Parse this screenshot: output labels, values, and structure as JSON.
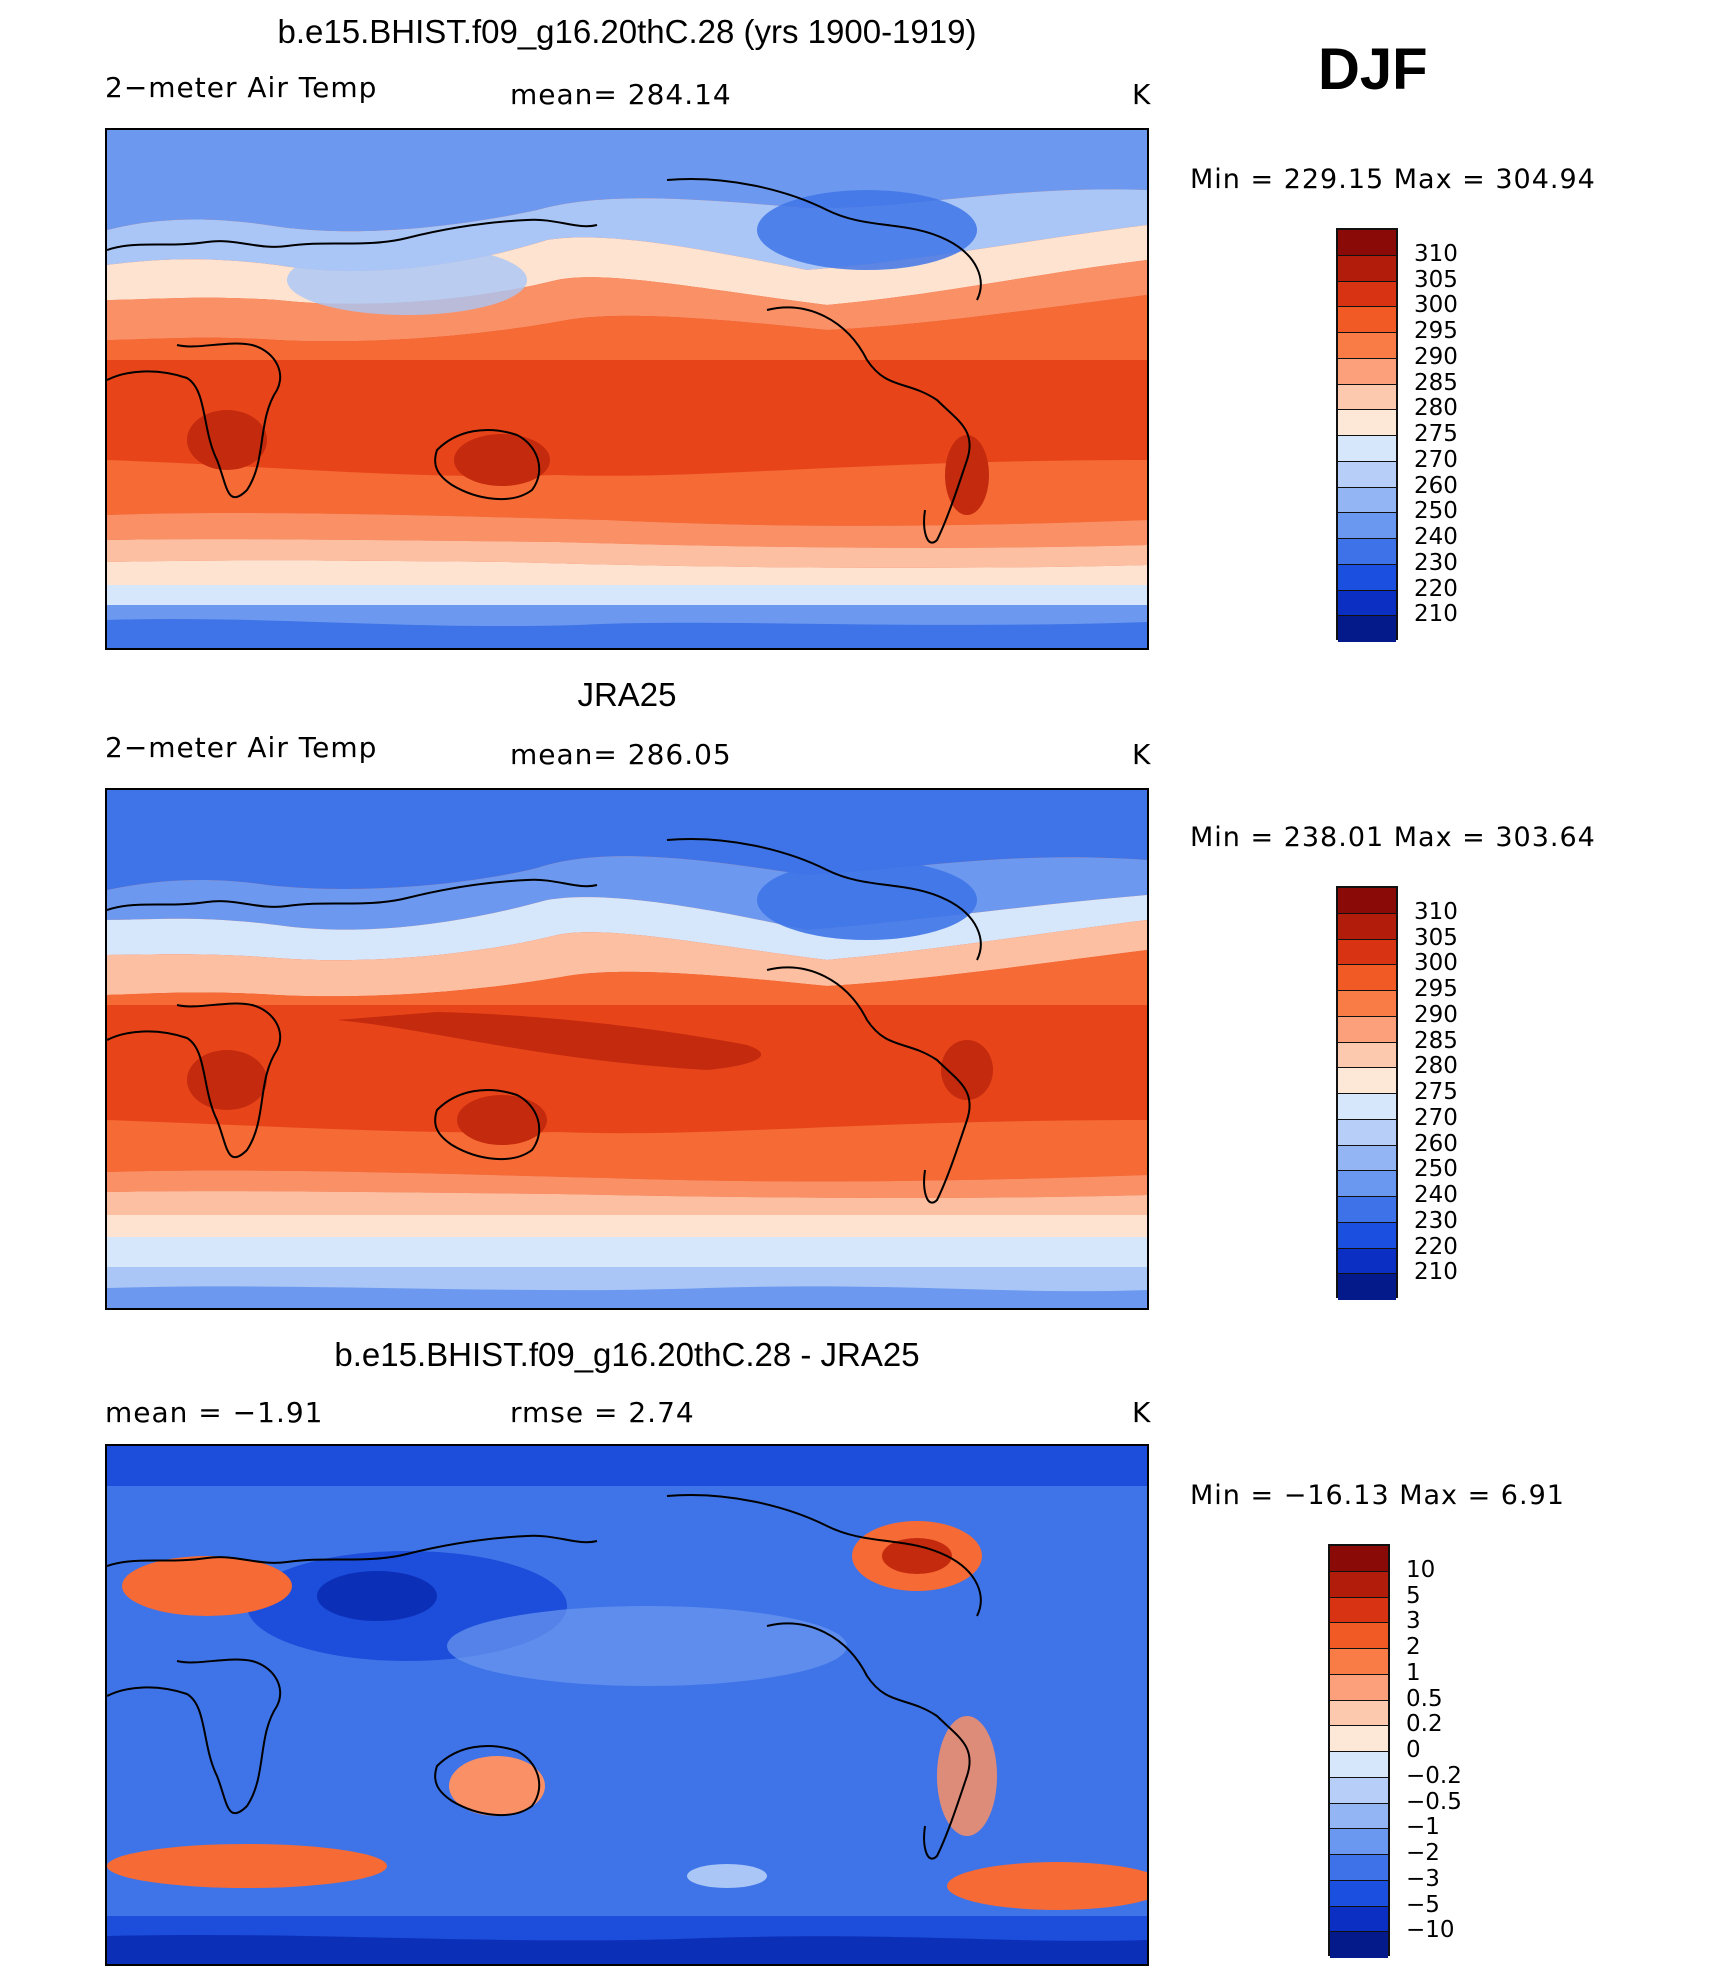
{
  "season": "DJF",
  "panels": [
    {
      "id": "model",
      "title": "b.e15.BHIST.f09_g16.20thC.28 (yrs 1900-1919)",
      "variable": "2−meter Air Temp",
      "stat1": "mean= 284.14",
      "stat2": "",
      "units": "K",
      "minmax": "Min  =  229.15  Max  =  304.94",
      "colorbar": {
        "labels": [
          "310",
          "305",
          "300",
          "295",
          "290",
          "285",
          "280",
          "275",
          "270",
          "260",
          "250",
          "240",
          "230",
          "220",
          "210"
        ],
        "colors": [
          "#8a0a07",
          "#b21d0b",
          "#d83312",
          "#f15a24",
          "#f97c47",
          "#fca07c",
          "#fcc9ae",
          "#fde7d6",
          "#d6e6fb",
          "#b7cff8",
          "#94b5f4",
          "#6a97ef",
          "#3e72e8",
          "#1a4fe0",
          "#0a2fc2",
          "#041a8a"
        ]
      }
    },
    {
      "id": "obs",
      "title": "JRA25",
      "variable": "2−meter Air Temp",
      "stat1": "mean= 286.05",
      "stat2": "",
      "units": "K",
      "minmax": "Min  =  238.01  Max  =  303.64",
      "colorbar": {
        "labels": [
          "310",
          "305",
          "300",
          "295",
          "290",
          "285",
          "280",
          "275",
          "270",
          "260",
          "250",
          "240",
          "230",
          "220",
          "210"
        ],
        "colors": [
          "#8a0a07",
          "#b21d0b",
          "#d83312",
          "#f15a24",
          "#f97c47",
          "#fca07c",
          "#fcc9ae",
          "#fde7d6",
          "#d6e6fb",
          "#b7cff8",
          "#94b5f4",
          "#6a97ef",
          "#3e72e8",
          "#1a4fe0",
          "#0a2fc2",
          "#041a8a"
        ]
      }
    },
    {
      "id": "diff",
      "title": "b.e15.BHIST.f09_g16.20thC.28 - JRA25",
      "variable": "mean =   −1.91",
      "stat1": "rmse =    2.74",
      "stat2": "",
      "units": "K",
      "minmax": "Min  =  −16.13  Max  =      6.91",
      "colorbar": {
        "labels": [
          "10",
          "5",
          "3",
          "2",
          "1",
          "0.5",
          "0.2",
          "0",
          "−0.2",
          "−0.5",
          "−1",
          "−2",
          "−3",
          "−5",
          "−10"
        ],
        "colors": [
          "#8a0a07",
          "#b21d0b",
          "#d83312",
          "#f15a24",
          "#f97c47",
          "#fca07c",
          "#fcc9ae",
          "#fde7d6",
          "#d6e6fb",
          "#b7cff8",
          "#94b5f4",
          "#6a97ef",
          "#3e72e8",
          "#1a4fe0",
          "#0a2fc2",
          "#041a8a"
        ]
      }
    }
  ],
  "map_palette": {
    "deep_red": "#c42a0d",
    "red": "#e8441a",
    "orange_red": "#f56a35",
    "orange": "#fa9066",
    "salmon": "#fcbfa2",
    "cream": "#fde3d0",
    "pale_blue": "#d7e7fb",
    "light_blue": "#a9c6f6",
    "blue": "#6c99ef",
    "mid_blue": "#3f74e8",
    "deep_blue": "#1c4ddb",
    "navy": "#0c2fb8"
  }
}
